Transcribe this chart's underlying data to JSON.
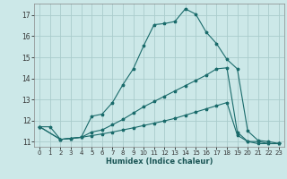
{
  "title": "",
  "xlabel": "Humidex (Indice chaleur)",
  "bg_color": "#cce8e8",
  "grid_color": "#aacccc",
  "line_color": "#1a6b6b",
  "xlim": [
    -0.5,
    23.5
  ],
  "ylim": [
    10.75,
    17.55
  ],
  "xticks": [
    0,
    1,
    2,
    3,
    4,
    5,
    6,
    7,
    8,
    9,
    10,
    11,
    12,
    13,
    14,
    15,
    16,
    17,
    18,
    19,
    20,
    21,
    22,
    23
  ],
  "yticks": [
    11,
    12,
    13,
    14,
    15,
    16,
    17
  ],
  "line1_x": [
    0,
    1,
    2,
    3,
    4,
    5,
    6,
    7,
    8,
    9,
    10,
    11,
    12,
    13,
    14,
    15,
    16,
    17,
    18,
    19,
    20,
    21,
    22,
    23
  ],
  "line1_y": [
    11.7,
    11.7,
    11.1,
    11.15,
    11.2,
    12.2,
    12.3,
    12.85,
    13.7,
    14.45,
    15.55,
    16.55,
    16.6,
    16.7,
    17.3,
    17.05,
    16.2,
    15.65,
    14.9,
    14.45,
    11.5,
    11.05,
    11.0,
    10.9
  ],
  "line2_x": [
    0,
    2,
    3,
    4,
    5,
    6,
    7,
    8,
    9,
    10,
    11,
    12,
    13,
    14,
    15,
    16,
    17,
    18,
    19,
    20,
    21,
    22,
    23
  ],
  "line2_y": [
    11.7,
    11.1,
    11.15,
    11.2,
    11.45,
    11.55,
    11.8,
    12.05,
    12.35,
    12.65,
    12.9,
    13.15,
    13.4,
    13.65,
    13.9,
    14.15,
    14.45,
    14.5,
    11.45,
    11.0,
    11.0,
    10.9,
    10.9
  ],
  "line3_x": [
    0,
    2,
    3,
    4,
    5,
    6,
    7,
    8,
    9,
    10,
    11,
    12,
    13,
    14,
    15,
    16,
    17,
    18,
    19,
    20,
    21,
    22,
    23
  ],
  "line3_y": [
    11.7,
    11.1,
    11.15,
    11.2,
    11.28,
    11.36,
    11.45,
    11.55,
    11.65,
    11.76,
    11.87,
    11.98,
    12.1,
    12.25,
    12.4,
    12.55,
    12.7,
    12.85,
    11.3,
    11.0,
    10.9,
    10.9,
    10.9
  ]
}
